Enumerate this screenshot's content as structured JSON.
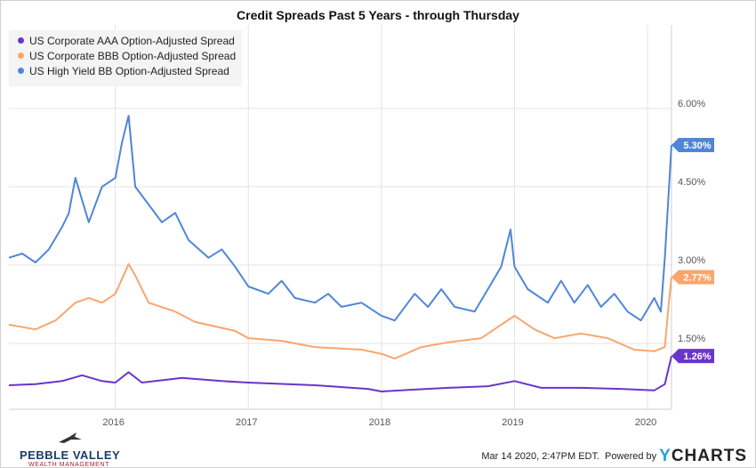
{
  "chart_data": {
    "type": "line",
    "title": "Credit Spreads Past 5 Years - through Thursday",
    "xlabel": "",
    "ylabel": "",
    "x_ticks": [
      "2016",
      "2017",
      "2018",
      "2019",
      "2020"
    ],
    "y_ticks": [
      "6.00%",
      "4.50%",
      "3.00%",
      "1.50%"
    ],
    "y_tick_values": [
      6.0,
      4.5,
      3.0,
      1.5
    ],
    "xlim": [
      2015.2,
      2020.18
    ],
    "ylim": [
      0.23,
      6.1
    ],
    "grid": true,
    "legend_position": "top-left",
    "series": [
      {
        "name": "US Corporate AAA Option-Adjusted Spread",
        "color": "#6a35c9",
        "end_label": "1.26%",
        "points": [
          [
            2015.2,
            0.7
          ],
          [
            2015.4,
            0.72
          ],
          [
            2015.6,
            0.78
          ],
          [
            2015.75,
            0.89
          ],
          [
            2015.9,
            0.78
          ],
          [
            2016.0,
            0.75
          ],
          [
            2016.1,
            0.95
          ],
          [
            2016.2,
            0.75
          ],
          [
            2016.5,
            0.84
          ],
          [
            2016.8,
            0.78
          ],
          [
            2017.0,
            0.75
          ],
          [
            2017.5,
            0.7
          ],
          [
            2017.9,
            0.63
          ],
          [
            2018.0,
            0.58
          ],
          [
            2018.2,
            0.61
          ],
          [
            2018.5,
            0.65
          ],
          [
            2018.8,
            0.68
          ],
          [
            2019.0,
            0.78
          ],
          [
            2019.2,
            0.65
          ],
          [
            2019.5,
            0.65
          ],
          [
            2019.8,
            0.63
          ],
          [
            2020.05,
            0.6
          ],
          [
            2020.13,
            0.72
          ],
          [
            2020.18,
            1.26
          ]
        ]
      },
      {
        "name": "US Corporate BBB Option-Adjusted Spread",
        "color": "#f9a66c",
        "end_label": "2.77%",
        "points": [
          [
            2015.2,
            1.86
          ],
          [
            2015.4,
            1.77
          ],
          [
            2015.55,
            1.94
          ],
          [
            2015.7,
            2.28
          ],
          [
            2015.8,
            2.37
          ],
          [
            2015.9,
            2.28
          ],
          [
            2016.0,
            2.45
          ],
          [
            2016.1,
            3.02
          ],
          [
            2016.15,
            2.8
          ],
          [
            2016.25,
            2.28
          ],
          [
            2016.45,
            2.11
          ],
          [
            2016.6,
            1.91
          ],
          [
            2016.9,
            1.74
          ],
          [
            2017.0,
            1.6
          ],
          [
            2017.25,
            1.55
          ],
          [
            2017.5,
            1.43
          ],
          [
            2017.85,
            1.38
          ],
          [
            2018.0,
            1.3
          ],
          [
            2018.1,
            1.21
          ],
          [
            2018.3,
            1.43
          ],
          [
            2018.5,
            1.52
          ],
          [
            2018.75,
            1.6
          ],
          [
            2018.9,
            1.86
          ],
          [
            2019.0,
            2.03
          ],
          [
            2019.15,
            1.77
          ],
          [
            2019.3,
            1.6
          ],
          [
            2019.5,
            1.69
          ],
          [
            2019.7,
            1.6
          ],
          [
            2019.9,
            1.38
          ],
          [
            2020.05,
            1.35
          ],
          [
            2020.13,
            1.43
          ],
          [
            2020.16,
            2.28
          ],
          [
            2020.18,
            2.77
          ]
        ]
      },
      {
        "name": "US High Yield BB Option-Adjusted Spread",
        "color": "#4f86d8",
        "end_label": "5.30%",
        "points": [
          [
            2015.2,
            3.14
          ],
          [
            2015.3,
            3.22
          ],
          [
            2015.4,
            3.05
          ],
          [
            2015.5,
            3.3
          ],
          [
            2015.6,
            3.73
          ],
          [
            2015.65,
            3.99
          ],
          [
            2015.7,
            4.67
          ],
          [
            2015.8,
            3.82
          ],
          [
            2015.9,
            4.5
          ],
          [
            2016.0,
            4.67
          ],
          [
            2016.05,
            5.35
          ],
          [
            2016.1,
            5.86
          ],
          [
            2016.15,
            4.5
          ],
          [
            2016.25,
            4.16
          ],
          [
            2016.35,
            3.82
          ],
          [
            2016.45,
            4.0
          ],
          [
            2016.55,
            3.48
          ],
          [
            2016.7,
            3.14
          ],
          [
            2016.8,
            3.3
          ],
          [
            2016.9,
            2.97
          ],
          [
            2017.0,
            2.59
          ],
          [
            2017.15,
            2.45
          ],
          [
            2017.25,
            2.7
          ],
          [
            2017.35,
            2.37
          ],
          [
            2017.5,
            2.28
          ],
          [
            2017.6,
            2.45
          ],
          [
            2017.7,
            2.2
          ],
          [
            2017.85,
            2.28
          ],
          [
            2018.0,
            2.03
          ],
          [
            2018.1,
            1.94
          ],
          [
            2018.25,
            2.45
          ],
          [
            2018.35,
            2.2
          ],
          [
            2018.45,
            2.54
          ],
          [
            2018.55,
            2.2
          ],
          [
            2018.7,
            2.11
          ],
          [
            2018.8,
            2.54
          ],
          [
            2018.9,
            2.97
          ],
          [
            2018.97,
            3.68
          ],
          [
            2019.0,
            2.97
          ],
          [
            2019.1,
            2.54
          ],
          [
            2019.25,
            2.28
          ],
          [
            2019.35,
            2.7
          ],
          [
            2019.45,
            2.28
          ],
          [
            2019.55,
            2.62
          ],
          [
            2019.65,
            2.2
          ],
          [
            2019.75,
            2.45
          ],
          [
            2019.85,
            2.11
          ],
          [
            2019.95,
            1.94
          ],
          [
            2020.05,
            2.37
          ],
          [
            2020.1,
            2.11
          ],
          [
            2020.13,
            3.14
          ],
          [
            2020.18,
            5.3
          ]
        ]
      }
    ]
  },
  "footer": {
    "logo_name": "PEBBLE VALLEY",
    "logo_sub": "WEALTH MANAGEMENT",
    "timestamp": "Mar 14 2020, 2:47PM EDT.",
    "powered_by": "Powered by",
    "brand_y": "Y",
    "brand_rest": "CHARTS"
  }
}
